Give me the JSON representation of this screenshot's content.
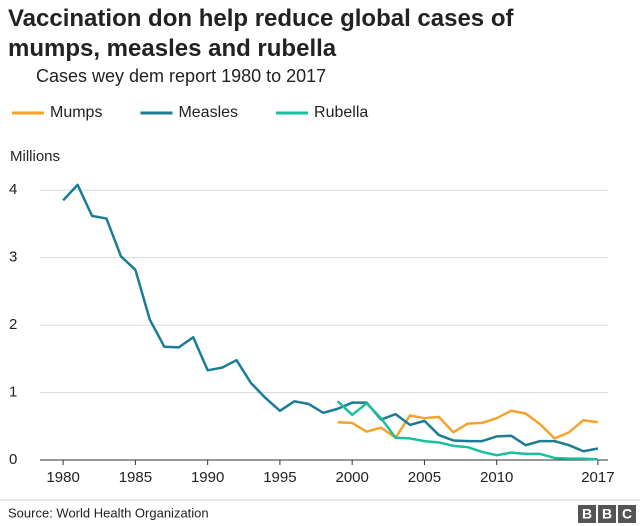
{
  "chart_data": {
    "type": "line",
    "title": "Vaccination don help reduce global cases of mumps, measles and rubella",
    "subtitle": "Cases wey dem report 1980 to 2017",
    "y_label": "Millions",
    "source": "Source: World Health Organization",
    "logo": [
      "B",
      "B",
      "C"
    ],
    "x": [
      1980,
      1981,
      1982,
      1983,
      1984,
      1985,
      1986,
      1987,
      1988,
      1989,
      1990,
      1991,
      1992,
      1993,
      1994,
      1995,
      1996,
      1997,
      1998,
      1999,
      2000,
      2001,
      2002,
      2003,
      2004,
      2005,
      2006,
      2007,
      2008,
      2009,
      2010,
      2011,
      2012,
      2013,
      2014,
      2015,
      2016,
      2017
    ],
    "series": [
      {
        "name": "Mumps",
        "color": "#f2a42c",
        "values": [
          null,
          null,
          null,
          null,
          null,
          null,
          null,
          null,
          null,
          null,
          null,
          null,
          null,
          null,
          null,
          null,
          null,
          null,
          null,
          0.56,
          0.55,
          0.42,
          0.48,
          0.33,
          0.66,
          0.62,
          0.64,
          0.41,
          0.54,
          0.55,
          0.62,
          0.73,
          0.69,
          0.53,
          0.32,
          0.41,
          0.59,
          0.56
        ]
      },
      {
        "name": "Measles",
        "color": "#1a7d94",
        "values": [
          3.85,
          4.08,
          3.62,
          3.58,
          3.02,
          2.82,
          2.08,
          1.68,
          1.67,
          1.82,
          1.33,
          1.37,
          1.48,
          1.14,
          0.92,
          0.73,
          0.87,
          0.83,
          0.7,
          0.76,
          0.85,
          0.85,
          0.6,
          0.68,
          0.52,
          0.58,
          0.37,
          0.29,
          0.28,
          0.28,
          0.35,
          0.36,
          0.22,
          0.28,
          0.28,
          0.22,
          0.13,
          0.17
        ]
      },
      {
        "name": "Rubella",
        "color": "#1bbf9c",
        "values": [
          null,
          null,
          null,
          null,
          null,
          null,
          null,
          null,
          null,
          null,
          null,
          null,
          null,
          null,
          null,
          null,
          null,
          null,
          null,
          0.87,
          0.67,
          0.84,
          0.62,
          0.33,
          0.32,
          0.28,
          0.26,
          0.21,
          0.19,
          0.12,
          0.07,
          0.11,
          0.09,
          0.09,
          0.03,
          0.02,
          0.02,
          0.01
        ]
      }
    ],
    "xlim": [
      1978.4,
      2017.7
    ],
    "xticks": [
      1980,
      1985,
      1990,
      1995,
      2000,
      2005,
      2010,
      2017
    ],
    "ylim": [
      0,
      4.3
    ],
    "yticks": [
      0,
      1,
      2,
      3,
      4
    ],
    "grid": true,
    "legend": "top"
  }
}
